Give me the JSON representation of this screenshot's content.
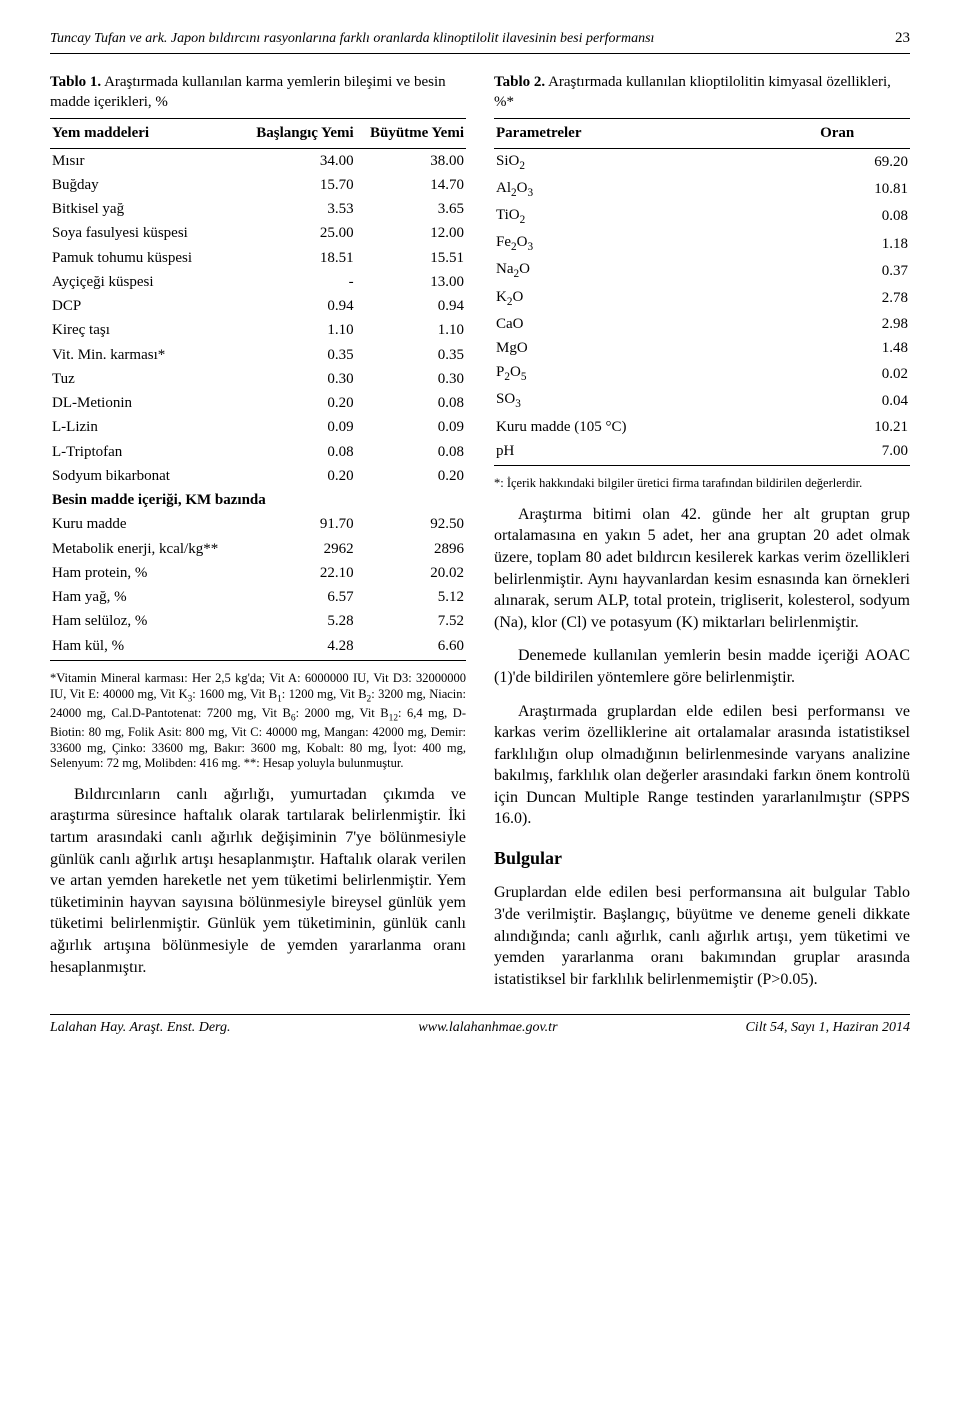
{
  "page": {
    "running_title": "Tuncay Tufan ve ark. Japon bıldırcını rasyonlarına farklı oranlarda klinoptilolit ilavesinin besi performansı",
    "page_number": "23"
  },
  "table1": {
    "caption_bold": "Tablo 1.",
    "caption_rest": " Araştırmada kullanılan karma yemlerin bileşimi ve besin madde içerikleri, %",
    "headers": [
      "Yem maddeleri",
      "Başlangıç Yemi",
      "Büyütme Yemi"
    ],
    "rows": [
      {
        "label": "Mısır",
        "a": "34.00",
        "b": "38.00",
        "section": false
      },
      {
        "label": "Buğday",
        "a": "15.70",
        "b": "14.70",
        "section": false
      },
      {
        "label": "Bitkisel yağ",
        "a": "3.53",
        "b": "3.65",
        "section": false
      },
      {
        "label": "Soya fasulyesi küspesi",
        "a": "25.00",
        "b": "12.00",
        "section": false
      },
      {
        "label": "Pamuk tohumu küspesi",
        "a": "18.51",
        "b": "15.51",
        "section": false
      },
      {
        "label": "Ayçiçeği küspesi",
        "a": "-",
        "b": "13.00",
        "section": false
      },
      {
        "label": "DCP",
        "a": "0.94",
        "b": "0.94",
        "section": false
      },
      {
        "label": "Kireç taşı",
        "a": "1.10",
        "b": "1.10",
        "section": false
      },
      {
        "label": "Vit. Min. karması*",
        "a": "0.35",
        "b": "0.35",
        "section": false
      },
      {
        "label": "Tuz",
        "a": "0.30",
        "b": "0.30",
        "section": false
      },
      {
        "label": "DL-Metionin",
        "a": "0.20",
        "b": "0.08",
        "section": false
      },
      {
        "label": "L-Lizin",
        "a": "0.09",
        "b": "0.09",
        "section": false
      },
      {
        "label": "L-Triptofan",
        "a": "0.08",
        "b": "0.08",
        "section": false
      },
      {
        "label": "Sodyum bikarbonat",
        "a": "0.20",
        "b": "0.20",
        "section": false
      },
      {
        "label": "Besin madde içeriği, KM bazında",
        "a": "",
        "b": "",
        "section": true
      },
      {
        "label": "Kuru madde",
        "a": "91.70",
        "b": "92.50",
        "section": false
      },
      {
        "label": "Metabolik enerji, kcal/kg**",
        "a": "2962",
        "b": "2896",
        "section": false
      },
      {
        "label": "Ham protein, %",
        "a": "22.10",
        "b": "20.02",
        "section": false
      },
      {
        "label": "Ham yağ, %",
        "a": "6.57",
        "b": "5.12",
        "section": false
      },
      {
        "label": "Ham selüloz, %",
        "a": "5.28",
        "b": "7.52",
        "section": false
      },
      {
        "label": "Ham kül, %",
        "a": "4.28",
        "b": "6.60",
        "section": false
      }
    ],
    "footnote_html": "*Vitamin Mineral karması: Her 2,5 kg'da; Vit A: 6000000 IU, Vit D3: 32000000 IU, Vit E: 40000 mg, Vit K<sub>3</sub>: 1600 mg, Vit B<sub>1</sub>: 1200 mg, Vit B<sub>2</sub>: 3200 mg, Niacin: 24000 mg, Cal.D-Pantotenat: 7200 mg, Vit B<sub>6</sub>: 2000 mg, Vit B<sub>12</sub>: 6,4 mg, D-Biotin: 80 mg, Folik Asit: 800 mg, Vit C: 40000 mg, Mangan: 42000 mg, Demir: 33600 mg, Çinko: 33600 mg, Bakır: 3600 mg, Kobalt: 80 mg, İyot: 400 mg, Selenyum: 72 mg, Molibden: 416 mg.  **: Hesap yoluyla bulunmuştur."
  },
  "left_paragraph": "Bıldırcınların canlı ağırlığı, yumurtadan çıkımda ve araştırma süresince haftalık olarak tartılarak belirlenmiştir. İki tartım arasındaki canlı ağırlık değişiminin 7'ye bölünmesiyle günlük canlı ağırlık artışı hesaplanmıştır. Haftalık olarak verilen ve artan yemden hareketle net yem tüketimi belirlenmiştir. Yem tüketiminin hayvan sayısına bölünmesiyle bireysel günlük yem tüketimi belirlenmiştir. Günlük yem tüketiminin, günlük canlı ağırlık artışına bölünmesiyle de yemden yararlanma oranı hesaplanmıştır.",
  "table2": {
    "caption_bold": "Tablo 2.",
    "caption_rest": " Araştırmada kullanılan klioptilolitin kimyasal özellikleri, %*",
    "headers": [
      "Parametreler",
      "Oran"
    ],
    "rows": [
      {
        "label_html": "SiO<sub>2</sub>",
        "val": "69.20"
      },
      {
        "label_html": "Al<sub>2</sub>O<sub>3</sub>",
        "val": "10.81"
      },
      {
        "label_html": "TiO<sub>2</sub>",
        "val": "0.08"
      },
      {
        "label_html": "Fe<sub>2</sub>O<sub>3</sub>",
        "val": "1.18"
      },
      {
        "label_html": "Na<sub>2</sub>O",
        "val": "0.37"
      },
      {
        "label_html": "K<sub>2</sub>O",
        "val": "2.78"
      },
      {
        "label_html": "CaO",
        "val": "2.98"
      },
      {
        "label_html": "MgO",
        "val": "1.48"
      },
      {
        "label_html": "P<sub>2</sub>O<sub>5</sub>",
        "val": "0.02"
      },
      {
        "label_html": "SO<sub>3</sub>",
        "val": "0.04"
      },
      {
        "label_html": "Kuru madde (105 °C)",
        "val": "10.21"
      },
      {
        "label_html": "pH",
        "val": "7.00"
      }
    ],
    "footnote": "*: İçerik hakkındaki bilgiler üretici firma tarafından bildirilen değerlerdir."
  },
  "right_paragraphs": [
    "Araştırma bitimi olan 42. günde her alt gruptan grup ortalamasına en yakın 5 adet, her ana gruptan 20 adet olmak üzere, toplam 80 adet bıldırcın kesilerek karkas verim özellikleri belirlenmiştir. Aynı hayvanlardan kesim esnasında kan örnekleri alınarak, serum ALP, total protein, trigliserit, kolesterol, sodyum (Na), klor (Cl) ve potasyum (K) miktarları belirlenmiştir.",
    "Denemede kullanılan yemlerin besin madde içeriği AOAC (1)'de bildirilen yöntemlere göre belirlenmiştir.",
    "Araştırmada gruplardan elde edilen besi performansı ve karkas verim özelliklerine ait ortalamalar arasında istatistiksel farklılığın olup olmadığının belirlenmesinde varyans analizine bakılmış, farklılık olan değerler arasındaki farkın önem kontrolü için Duncan Multiple Range testinden yararlanılmıştır (SPPS 16.0)."
  ],
  "bulgular_heading": "Bulgular",
  "bulgular_paragraph": "Gruplardan elde edilen besi performansına ait bulgular Tablo 3'de verilmiştir. Başlangıç, büyütme ve deneme geneli dikkate alındığında; canlı ağırlık, canlı ağırlık artışı, yem tüketimi ve yemden yararlanma oranı bakımından gruplar arasında istatistiksel bir farklılık belirlenmemiştir (P>0.05).",
  "footer": {
    "left": "Lalahan Hay. Araşt. Enst. Derg.",
    "center": "www.lalahanhmae.gov.tr",
    "right": "Cilt 54, Sayı 1, Haziran 2014"
  }
}
